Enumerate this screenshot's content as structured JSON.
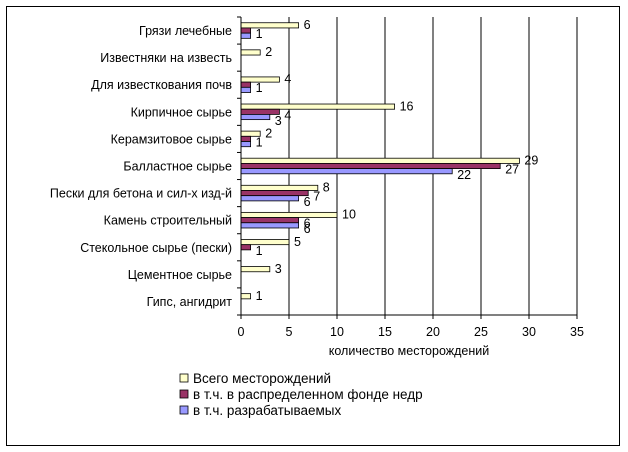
{
  "chart_data": {
    "type": "bar",
    "orientation": "horizontal",
    "categories": [
      "Грязи лечебные",
      "Известняки на известь",
      "Для известкования почв",
      "Кирпичное сырье",
      "Керамзитовое сырье",
      "Балластное сырье",
      "Пески для бетона и сил-х изд-й",
      "Камень строительный",
      "Стекольное сырье (пески)",
      "Цементное сырье",
      "Гипс, ангидрит"
    ],
    "series": [
      {
        "name": "Всего месторождений",
        "color": "#ffffcc",
        "values": [
          6,
          2,
          4,
          16,
          2,
          29,
          8,
          10,
          5,
          3,
          1
        ]
      },
      {
        "name": "в т.ч. в распределенном фонде недр",
        "color": "#993366",
        "values": [
          1,
          null,
          1,
          4,
          1,
          27,
          7,
          6,
          1,
          null,
          null
        ]
      },
      {
        "name": "в т.ч. разрабатываемых",
        "color": "#9999ff",
        "values": [
          1,
          null,
          1,
          3,
          1,
          22,
          6,
          6,
          null,
          null,
          null
        ]
      }
    ],
    "data_labels": [
      [
        "6",
        "2",
        "4",
        "16",
        "2",
        "29",
        "8",
        "10",
        "5",
        "3",
        "1"
      ],
      [
        "1",
        "",
        "1",
        "4",
        "1",
        "27",
        "7",
        "6",
        "1",
        "",
        ""
      ],
      [
        "",
        "",
        "",
        "3",
        "",
        "22",
        "6",
        "6",
        "",
        "",
        ""
      ]
    ],
    "xlabel": "количество месторождений",
    "xlim": [
      0,
      35
    ],
    "xticks": [
      "0",
      "5",
      "10",
      "15",
      "20",
      "25",
      "30",
      "35"
    ],
    "grid": true,
    "legend_position": "bottom"
  }
}
